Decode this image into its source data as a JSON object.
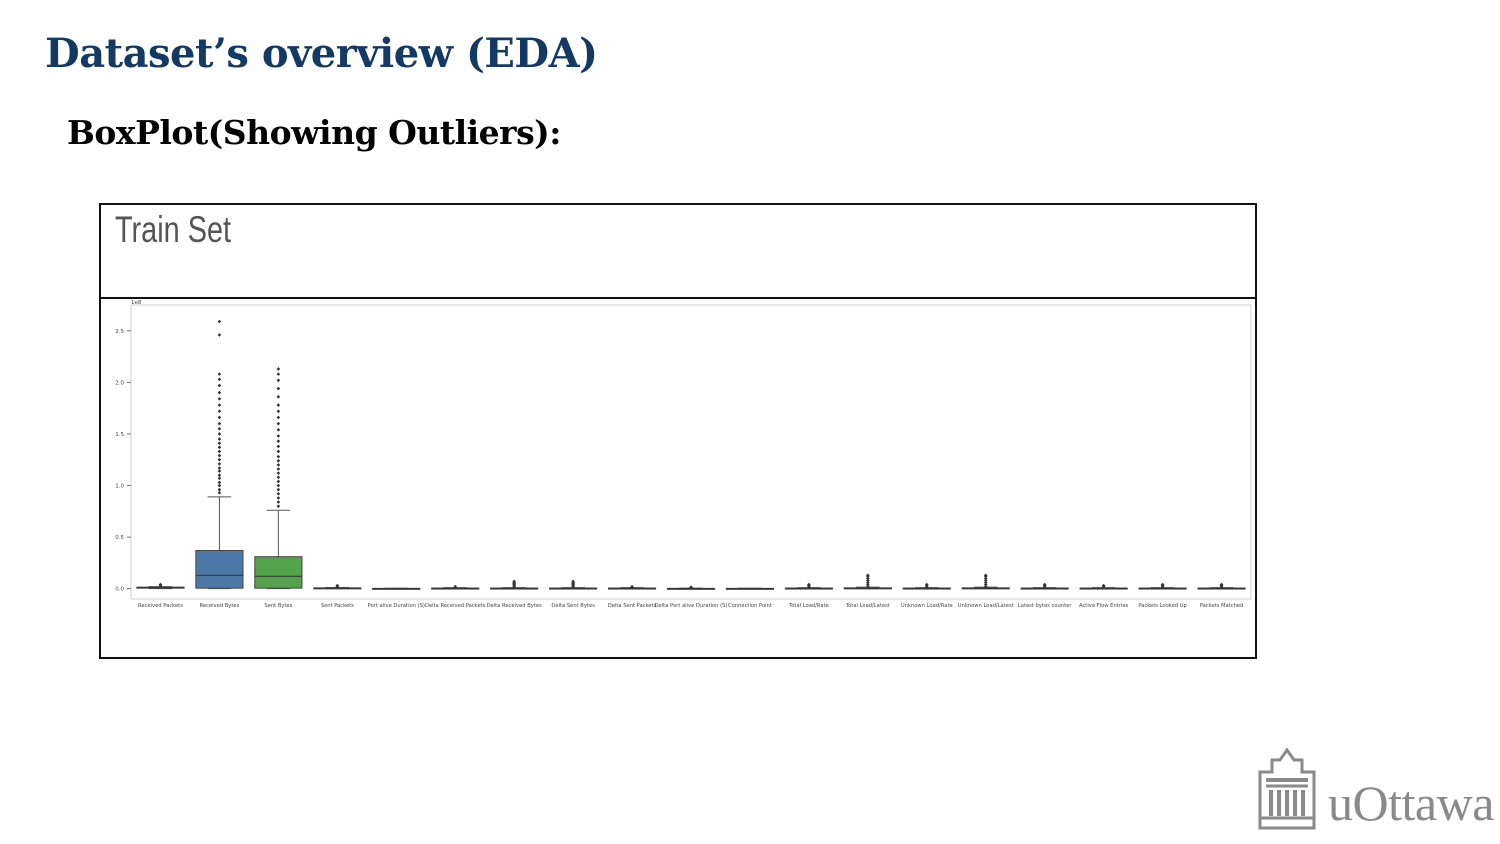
{
  "slide": {
    "title": "Dataset’s overview (EDA)",
    "subtitle": "BoxPlot(Showing Outliers):",
    "panel_label": "Train Set",
    "logo_text": "uOttawa"
  },
  "colors": {
    "title": "#143a63",
    "box_blue": "#4c78a8",
    "box_green": "#54a24b",
    "logo": "#8a8a8a"
  },
  "chart_data": {
    "type": "box",
    "title": "",
    "xlabel": "",
    "ylabel": "",
    "y_scale_label": "1e8",
    "ylim": [
      -0.1,
      2.75
    ],
    "yticks": [
      0.0,
      0.5,
      1.0,
      1.5,
      2.0,
      2.5
    ],
    "ytick_labels": [
      "0.0",
      "0.5",
      "1.0",
      "1.5",
      "2.0",
      "2.5"
    ],
    "grid": false,
    "categories": [
      "Received Packets",
      "Received Bytes",
      "Sent Bytes",
      "Sent Packets",
      "Port alive Duration (S)",
      "Delta Received Packets",
      "Delta Received Bytes",
      "Delta Sent Bytes",
      "Delta Sent Packets",
      "Delta Port alive Duration (S)",
      "Connection Point",
      "Total Load/Rate",
      "Total Load/Latest",
      "Unknown Load/Rate",
      "Unknown Load/Latest",
      "Latest bytes counter",
      "Active Flow Entries",
      "Packets Looked Up",
      "Packets Matched"
    ],
    "boxes": [
      {
        "q1": 0.005,
        "median": 0.01,
        "q3": 0.015,
        "whisker_low": 0.0,
        "whisker_high": 0.02,
        "outliers": [
          0.03,
          0.04
        ],
        "color": "#4c78a8"
      },
      {
        "q1": 0.005,
        "median": 0.13,
        "q3": 0.37,
        "whisker_low": 0.0,
        "whisker_high": 0.89,
        "outliers": [
          0.93,
          0.96,
          1.0,
          1.03,
          1.07,
          1.1,
          1.14,
          1.17,
          1.21,
          1.25,
          1.29,
          1.33,
          1.37,
          1.41,
          1.45,
          1.5,
          1.55,
          1.6,
          1.66,
          1.72,
          1.78,
          1.84,
          1.9,
          1.97,
          2.03,
          2.08,
          2.46,
          2.59
        ],
        "color": "#4c78a8"
      },
      {
        "q1": 0.005,
        "median": 0.12,
        "q3": 0.31,
        "whisker_low": 0.0,
        "whisker_high": 0.76,
        "outliers": [
          0.8,
          0.84,
          0.88,
          0.92,
          0.96,
          1.0,
          1.04,
          1.08,
          1.12,
          1.16,
          1.2,
          1.24,
          1.28,
          1.33,
          1.38,
          1.43,
          1.48,
          1.54,
          1.6,
          1.66,
          1.72,
          1.78,
          1.86,
          1.94,
          2.02,
          2.08,
          2.13
        ],
        "color": "#54a24b"
      },
      {
        "q1": 0.003,
        "median": 0.005,
        "q3": 0.008,
        "whisker_low": 0.0,
        "whisker_high": 0.012,
        "outliers": [
          0.02,
          0.03
        ],
        "color": "#e45756"
      },
      {
        "q1": 0.001,
        "median": 0.002,
        "q3": 0.003,
        "whisker_low": 0.0,
        "whisker_high": 0.004,
        "outliers": [],
        "color": "#9467bd"
      },
      {
        "q1": 0.002,
        "median": 0.004,
        "q3": 0.006,
        "whisker_low": 0.0,
        "whisker_high": 0.01,
        "outliers": [
          0.02
        ],
        "color": "#8c564b"
      },
      {
        "q1": 0.002,
        "median": 0.004,
        "q3": 0.006,
        "whisker_low": 0.0,
        "whisker_high": 0.01,
        "outliers": [
          0.02,
          0.03,
          0.04,
          0.05,
          0.06,
          0.07
        ],
        "color": "#e377c2"
      },
      {
        "q1": 0.002,
        "median": 0.004,
        "q3": 0.006,
        "whisker_low": 0.0,
        "whisker_high": 0.01,
        "outliers": [
          0.02,
          0.03,
          0.04,
          0.05,
          0.06,
          0.07
        ],
        "color": "#7f7f7f"
      },
      {
        "q1": 0.002,
        "median": 0.004,
        "q3": 0.006,
        "whisker_low": 0.0,
        "whisker_high": 0.01,
        "outliers": [
          0.015,
          0.02
        ],
        "color": "#bcbd22"
      },
      {
        "q1": 0.001,
        "median": 0.002,
        "q3": 0.003,
        "whisker_low": 0.0,
        "whisker_high": 0.005,
        "outliers": [
          0.01,
          0.015
        ],
        "color": "#17becf"
      },
      {
        "q1": 0.001,
        "median": 0.002,
        "q3": 0.003,
        "whisker_low": 0.0,
        "whisker_high": 0.004,
        "outliers": [],
        "color": "#4c78a8"
      },
      {
        "q1": 0.002,
        "median": 0.004,
        "q3": 0.006,
        "whisker_low": 0.0,
        "whisker_high": 0.01,
        "outliers": [
          0.02,
          0.03,
          0.04
        ],
        "color": "#f58518"
      },
      {
        "q1": 0.002,
        "median": 0.004,
        "q3": 0.008,
        "whisker_low": 0.0,
        "whisker_high": 0.015,
        "outliers": [
          0.02,
          0.04,
          0.06,
          0.08,
          0.1,
          0.12,
          0.13
        ],
        "color": "#54a24b"
      },
      {
        "q1": 0.002,
        "median": 0.004,
        "q3": 0.006,
        "whisker_low": 0.0,
        "whisker_high": 0.01,
        "outliers": [
          0.02,
          0.03,
          0.04
        ],
        "color": "#e45756"
      },
      {
        "q1": 0.002,
        "median": 0.004,
        "q3": 0.008,
        "whisker_low": 0.0,
        "whisker_high": 0.015,
        "outliers": [
          0.02,
          0.04,
          0.06,
          0.08,
          0.1,
          0.12,
          0.13
        ],
        "color": "#9467bd"
      },
      {
        "q1": 0.002,
        "median": 0.004,
        "q3": 0.006,
        "whisker_low": 0.0,
        "whisker_high": 0.01,
        "outliers": [
          0.02,
          0.03,
          0.04
        ],
        "color": "#8c564b"
      },
      {
        "q1": 0.002,
        "median": 0.004,
        "q3": 0.006,
        "whisker_low": 0.0,
        "whisker_high": 0.01,
        "outliers": [
          0.02,
          0.03
        ],
        "color": "#e377c2"
      },
      {
        "q1": 0.002,
        "median": 0.004,
        "q3": 0.006,
        "whisker_low": 0.0,
        "whisker_high": 0.01,
        "outliers": [
          0.02,
          0.03,
          0.04
        ],
        "color": "#7f7f7f"
      },
      {
        "q1": 0.002,
        "median": 0.004,
        "q3": 0.006,
        "whisker_low": 0.0,
        "whisker_high": 0.01,
        "outliers": [
          0.02,
          0.03,
          0.04
        ],
        "color": "#bcbd22"
      }
    ]
  }
}
